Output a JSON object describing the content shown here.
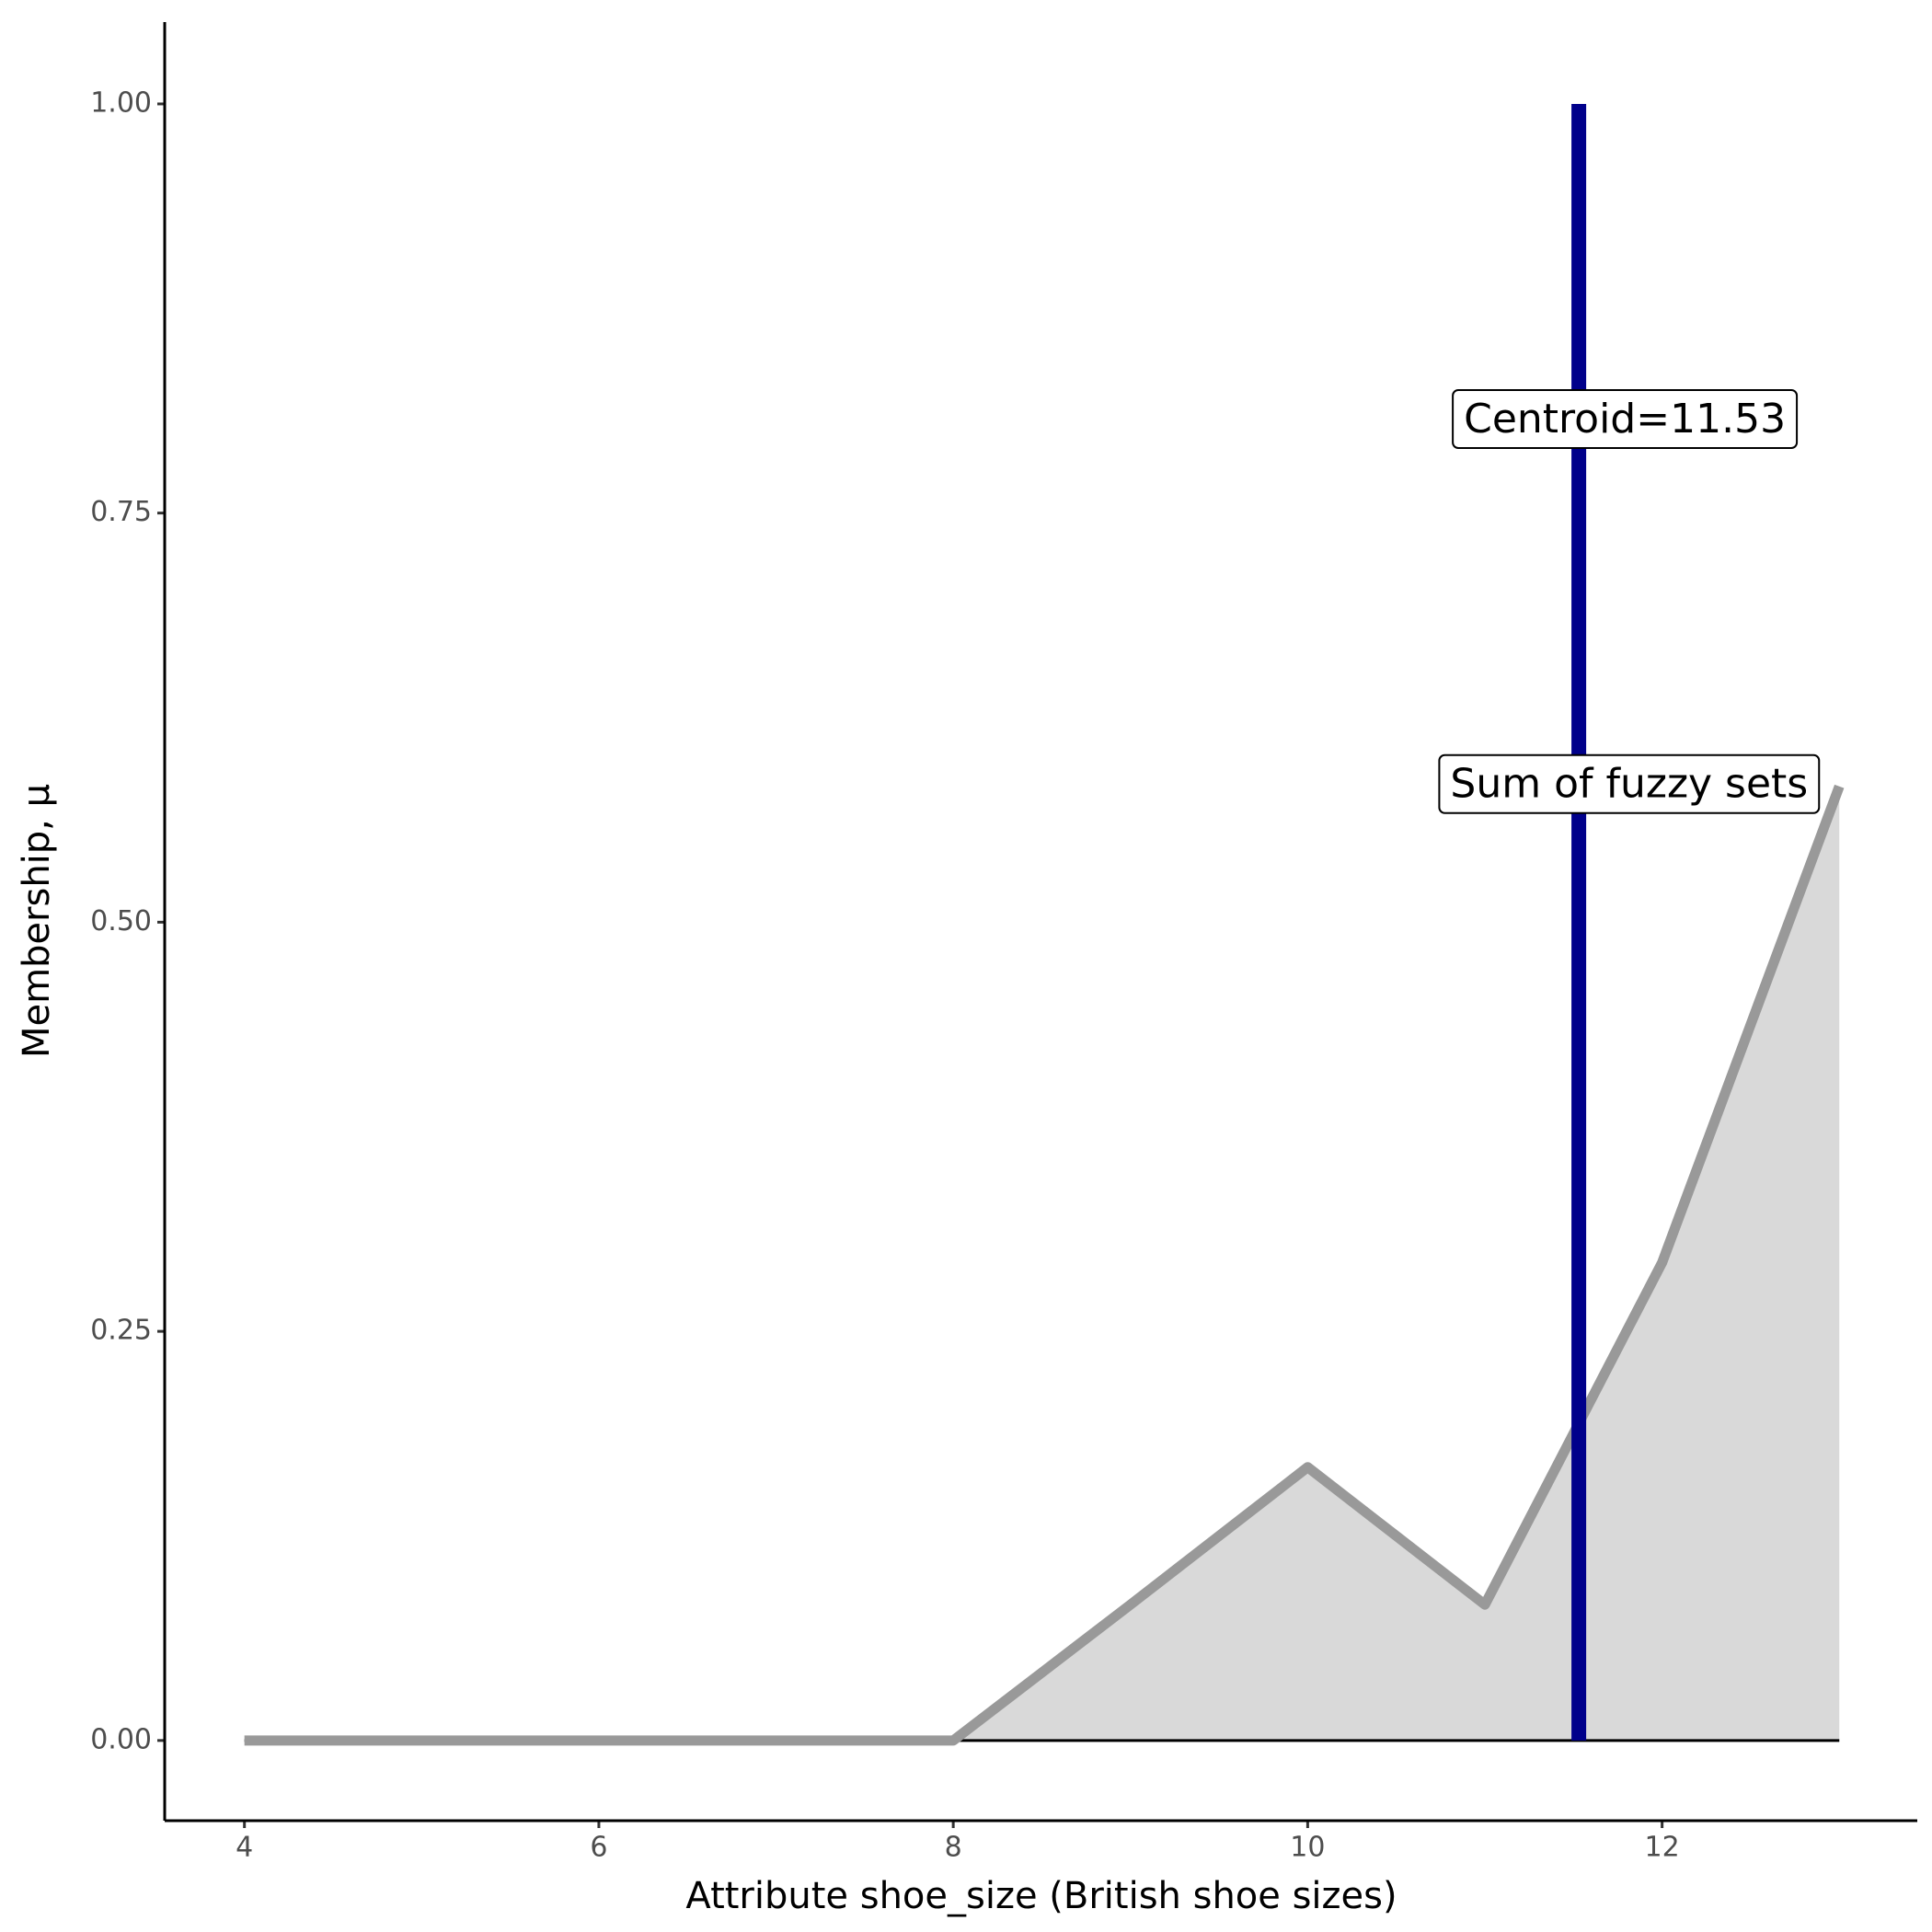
{
  "chart_data": {
    "type": "area",
    "x_label": "Attribute shoe_size (British shoe sizes)",
    "y_label": "Membership, μ",
    "x": [
      4,
      5,
      6,
      7,
      8,
      9,
      10,
      11,
      12,
      13
    ],
    "series": [
      {
        "name": "Sum of fuzzy sets",
        "color": "#999999",
        "fill": "#d9d9d9",
        "values": [
          0,
          0,
          0,
          0,
          0,
          0.083,
          0.167,
          0.083,
          0.292,
          0.583
        ]
      }
    ],
    "centroid": {
      "value": 11.53,
      "label": "Centroid=11.53",
      "color": "#00008b"
    },
    "xlim": [
      3.55,
      13.44
    ],
    "ylim": [
      -0.049,
      1.05
    ],
    "xticks": [
      4,
      6,
      8,
      10,
      12
    ],
    "yticks": [
      {
        "value": 0,
        "label": "0.00"
      },
      {
        "value": 0.25,
        "label": "0.25"
      },
      {
        "value": 0.5,
        "label": "0.50"
      },
      {
        "value": 0.75,
        "label": "0.75"
      },
      {
        "value": 1,
        "label": "1.00"
      }
    ]
  }
}
